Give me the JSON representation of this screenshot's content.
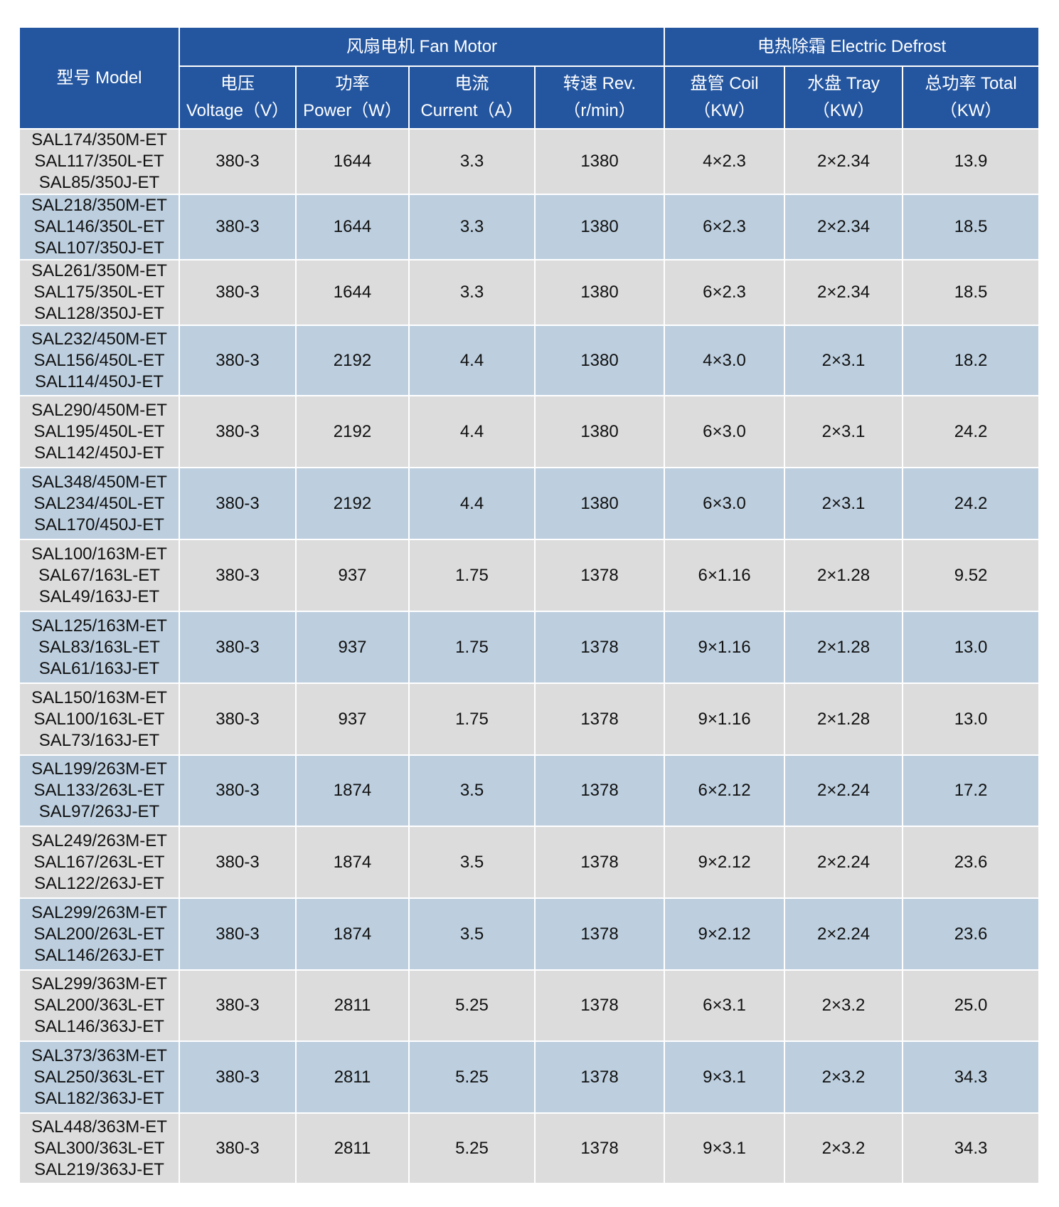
{
  "header": {
    "model": "型号 Model",
    "fan_motor_group": "风扇电机  Fan Motor",
    "defrost_group": "电热除霜 Electric Defrost",
    "columns": [
      {
        "cn": "电压",
        "en": "Voltage（V）"
      },
      {
        "cn": "功率",
        "en": "Power（W）"
      },
      {
        "cn": "电流",
        "en": "Current（A）"
      },
      {
        "cn": "转速 Rev.",
        "en": "（r/min）"
      },
      {
        "cn": "盘管 Coil",
        "en": "（KW）"
      },
      {
        "cn": "水盘 Tray",
        "en": "（KW）"
      },
      {
        "cn": "总功率 Total",
        "en": "（KW）"
      }
    ]
  },
  "rows": [
    {
      "models": [
        "SAL174/350M-ET",
        "SAL117/350L-ET",
        "SAL85/350J-ET"
      ],
      "values": [
        "380-3",
        "1644",
        "3.3",
        "1380",
        "4×2.3",
        "2×2.34",
        "13.9"
      ]
    },
    {
      "models": [
        "SAL218/350M-ET",
        "SAL146/350L-ET",
        "SAL107/350J-ET"
      ],
      "values": [
        "380-3",
        "1644",
        "3.3",
        "1380",
        "6×2.3",
        "2×2.34",
        "18.5"
      ]
    },
    {
      "models": [
        "SAL261/350M-ET",
        "SAL175/350L-ET",
        "SAL128/350J-ET"
      ],
      "values": [
        "380-3",
        "1644",
        "3.3",
        "1380",
        "6×2.3",
        "2×2.34",
        "18.5"
      ]
    },
    {
      "models": [
        "SAL232/450M-ET",
        "SAL156/450L-ET",
        "SAL114/450J-ET"
      ],
      "values": [
        "380-3",
        "2192",
        "4.4",
        "1380",
        "4×3.0",
        "2×3.1",
        "18.2"
      ]
    },
    {
      "models": [
        "SAL290/450M-ET",
        "SAL195/450L-ET",
        "SAL142/450J-ET"
      ],
      "values": [
        "380-3",
        "2192",
        "4.4",
        "1380",
        "6×3.0",
        "2×3.1",
        "24.2"
      ]
    },
    {
      "models": [
        "SAL348/450M-ET",
        "SAL234/450L-ET",
        "SAL170/450J-ET"
      ],
      "values": [
        "380-3",
        "2192",
        "4.4",
        "1380",
        "6×3.0",
        "2×3.1",
        "24.2"
      ]
    },
    {
      "models": [
        "SAL100/163M-ET",
        "SAL67/163L-ET",
        "SAL49/163J-ET"
      ],
      "values": [
        "380-3",
        "937",
        "1.75",
        "1378",
        "6×1.16",
        "2×1.28",
        "9.52"
      ]
    },
    {
      "models": [
        "SAL125/163M-ET",
        "SAL83/163L-ET",
        "SAL61/163J-ET"
      ],
      "values": [
        "380-3",
        "937",
        "1.75",
        "1378",
        "9×1.16",
        "2×1.28",
        "13.0"
      ]
    },
    {
      "models": [
        "SAL150/163M-ET",
        "SAL100/163L-ET",
        "SAL73/163J-ET"
      ],
      "values": [
        "380-3",
        "937",
        "1.75",
        "1378",
        "9×1.16",
        "2×1.28",
        "13.0"
      ]
    },
    {
      "models": [
        "SAL199/263M-ET",
        "SAL133/263L-ET",
        "SAL97/263J-ET"
      ],
      "values": [
        "380-3",
        "1874",
        "3.5",
        "1378",
        "6×2.12",
        "2×2.24",
        "17.2"
      ]
    },
    {
      "models": [
        "SAL249/263M-ET",
        "SAL167/263L-ET",
        "SAL122/263J-ET"
      ],
      "values": [
        "380-3",
        "1874",
        "3.5",
        "1378",
        "9×2.12",
        "2×2.24",
        "23.6"
      ]
    },
    {
      "models": [
        "SAL299/263M-ET",
        "SAL200/263L-ET",
        "SAL146/263J-ET"
      ],
      "values": [
        "380-3",
        "1874",
        "3.5",
        "1378",
        "9×2.12",
        "2×2.24",
        "23.6"
      ]
    },
    {
      "models": [
        "SAL299/363M-ET",
        "SAL200/363L-ET",
        "SAL146/363J-ET"
      ],
      "values": [
        "380-3",
        "2811",
        "5.25",
        "1378",
        "6×3.1",
        "2×3.2",
        "25.0"
      ]
    },
    {
      "models": [
        "SAL373/363M-ET",
        "SAL250/363L-ET",
        "SAL182/363J-ET"
      ],
      "values": [
        "380-3",
        "2811",
        "5.25",
        "1378",
        "9×3.1",
        "2×3.2",
        "34.3"
      ]
    },
    {
      "models": [
        "SAL448/363M-ET",
        "SAL300/363L-ET",
        "SAL219/363J-ET"
      ],
      "values": [
        "380-3",
        "2811",
        "5.25",
        "1378",
        "9×3.1",
        "2×3.2",
        "34.3"
      ]
    }
  ]
}
